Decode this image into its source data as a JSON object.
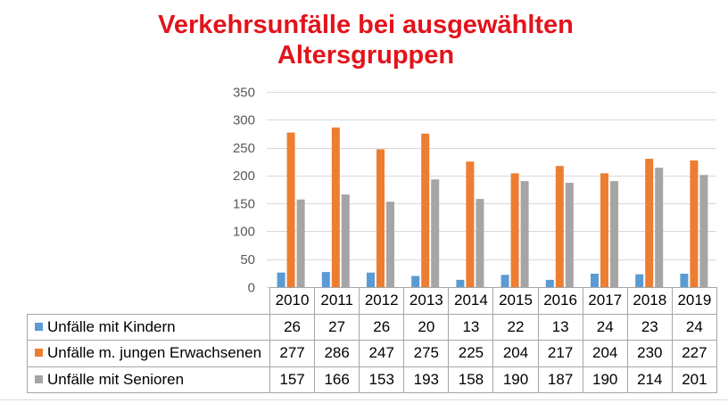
{
  "chart_data": {
    "type": "bar",
    "title": "Verkehrsunfälle bei ausgewählten Altersgruppen",
    "categories": [
      "2010",
      "2011",
      "2012",
      "2013",
      "2014",
      "2015",
      "2016",
      "2017",
      "2018",
      "2019"
    ],
    "series": [
      {
        "name": "Unfälle mit Kindern",
        "color": "#5B9BD5",
        "values": [
          26,
          27,
          26,
          20,
          13,
          22,
          13,
          24,
          23,
          24
        ]
      },
      {
        "name": "Unfälle m. jungen Erwachsenen",
        "color": "#ED7D31",
        "values": [
          277,
          286,
          247,
          275,
          225,
          204,
          217,
          204,
          230,
          227
        ]
      },
      {
        "name": "Unfälle mit Senioren",
        "color": "#A5A5A5",
        "values": [
          157,
          166,
          153,
          193,
          158,
          190,
          187,
          190,
          214,
          201
        ]
      }
    ],
    "ylim": [
      0,
      350
    ],
    "yticks": [
      0,
      50,
      100,
      150,
      200,
      250,
      300,
      350
    ],
    "grid": true,
    "legend": "data-table"
  },
  "colors": {
    "title": "#E3131B",
    "gridline": "#D9D9D9",
    "axis_text": "#595959",
    "table_border": "#A6A6A6",
    "table_text": "#000000"
  }
}
